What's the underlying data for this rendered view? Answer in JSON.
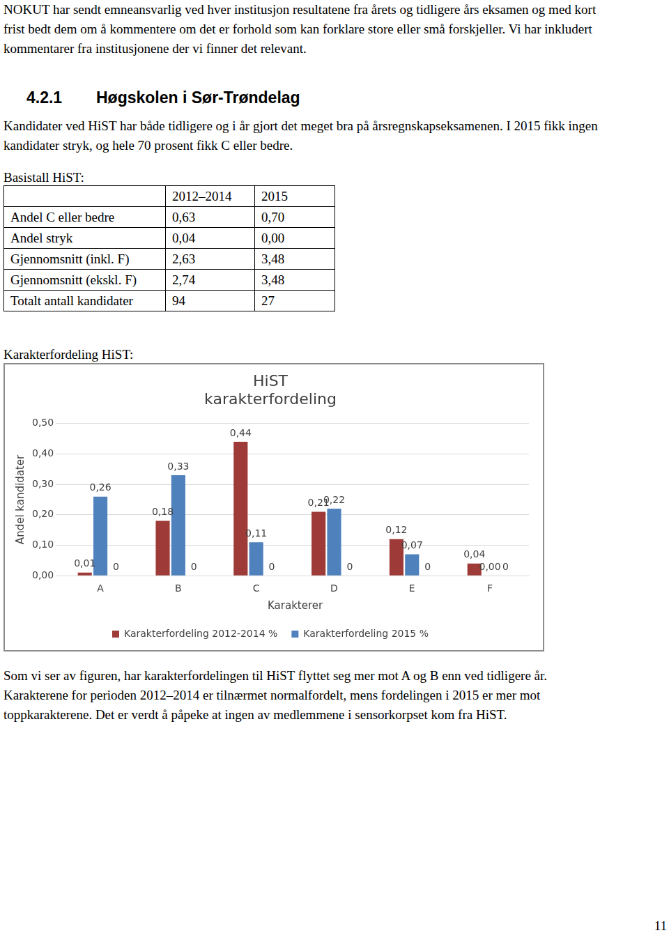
{
  "intro": "NOKUT har sendt emneansvarlig ved hver institusjon resultatene fra årets og tidligere års eksamen og med kort frist bedt dem om å kommentere om det er forhold som kan forklare store eller små forskjeller. Vi har inkludert kommentarer fra institusjonene der vi finner det relevant.",
  "section": {
    "number": "4.2.1",
    "title": "Høgskolen i Sør-Trøndelag"
  },
  "paragraph1": "Kandidater ved HiST har både tidligere og i år gjort det meget bra på årsregnskapseksamenen. I 2015 fikk ingen kandidater stryk, og hele 70 prosent fikk C eller bedre.",
  "table_caption": "Basistall HiST:",
  "table": {
    "header": [
      "2012–2014",
      "2015"
    ],
    "rows": [
      [
        "Andel C eller bedre",
        "0,63",
        "0,70"
      ],
      [
        "Andel stryk",
        "0,04",
        "0,00"
      ],
      [
        "Gjennomsnitt (inkl. F)",
        "2,63",
        "3,48"
      ],
      [
        "Gjennomsnitt (ekskl. F)",
        "2,74",
        "3,48"
      ],
      [
        "Totalt antall kandidater",
        "94",
        "27"
      ]
    ]
  },
  "chart_caption": "Karakterfordeling HiST:",
  "chart_data": {
    "type": "bar",
    "title": "HiST karakterfordeling",
    "x_label": "Karakterer",
    "y_label": "Andel kandidater",
    "categories": [
      "A",
      "B",
      "C",
      "D",
      "E",
      "F"
    ],
    "series": [
      {
        "name": "Karakterfordeling 2012-2014 %",
        "color": "#9e3b38",
        "values": [
          0.01,
          0.18,
          0.44,
          0.21,
          0.12,
          0.04
        ],
        "value_labels": [
          "0,01",
          "0,18",
          "0,44",
          "0,21",
          "0,12",
          "0,04"
        ]
      },
      {
        "name": "Karakterfordeling 2015 %",
        "color": "#4f81bd",
        "values": [
          0.26,
          0.33,
          0.11,
          0.22,
          0.07,
          0.0
        ],
        "value_labels": [
          "0,26",
          "0,33",
          "0,11",
          "0,22",
          "0,07",
          "0,00"
        ]
      },
      {
        "color": "#9bbb59",
        "values": [
          0,
          0,
          0,
          0,
          0,
          0
        ]
      }
    ],
    "ylim": [
      0,
      0.5
    ],
    "yticks": [
      {
        "value": 0,
        "label": "0,00"
      },
      {
        "value": 0.1,
        "label": "0,10"
      },
      {
        "value": 0.2,
        "label": "0,20"
      },
      {
        "value": 0.3,
        "label": "0,30"
      },
      {
        "value": 0.4,
        "label": "0,40"
      },
      {
        "value": 0.5,
        "label": "0,50"
      }
    ],
    "grid": true,
    "legend": "bottom",
    "data_labels": true
  },
  "paragraph2": "Som vi ser av figuren, har karakterfordelingen til HiST flyttet seg mer mot A og B enn ved tidligere år. Karakterene for perioden 2012–2014 er tilnærmet normalfordelt, mens fordelingen i 2015 er mer mot toppkarakterene. Det er verdt å påpeke at ingen av medlemmene i sensorkorpset kom fra HiST.",
  "page_number": "11"
}
